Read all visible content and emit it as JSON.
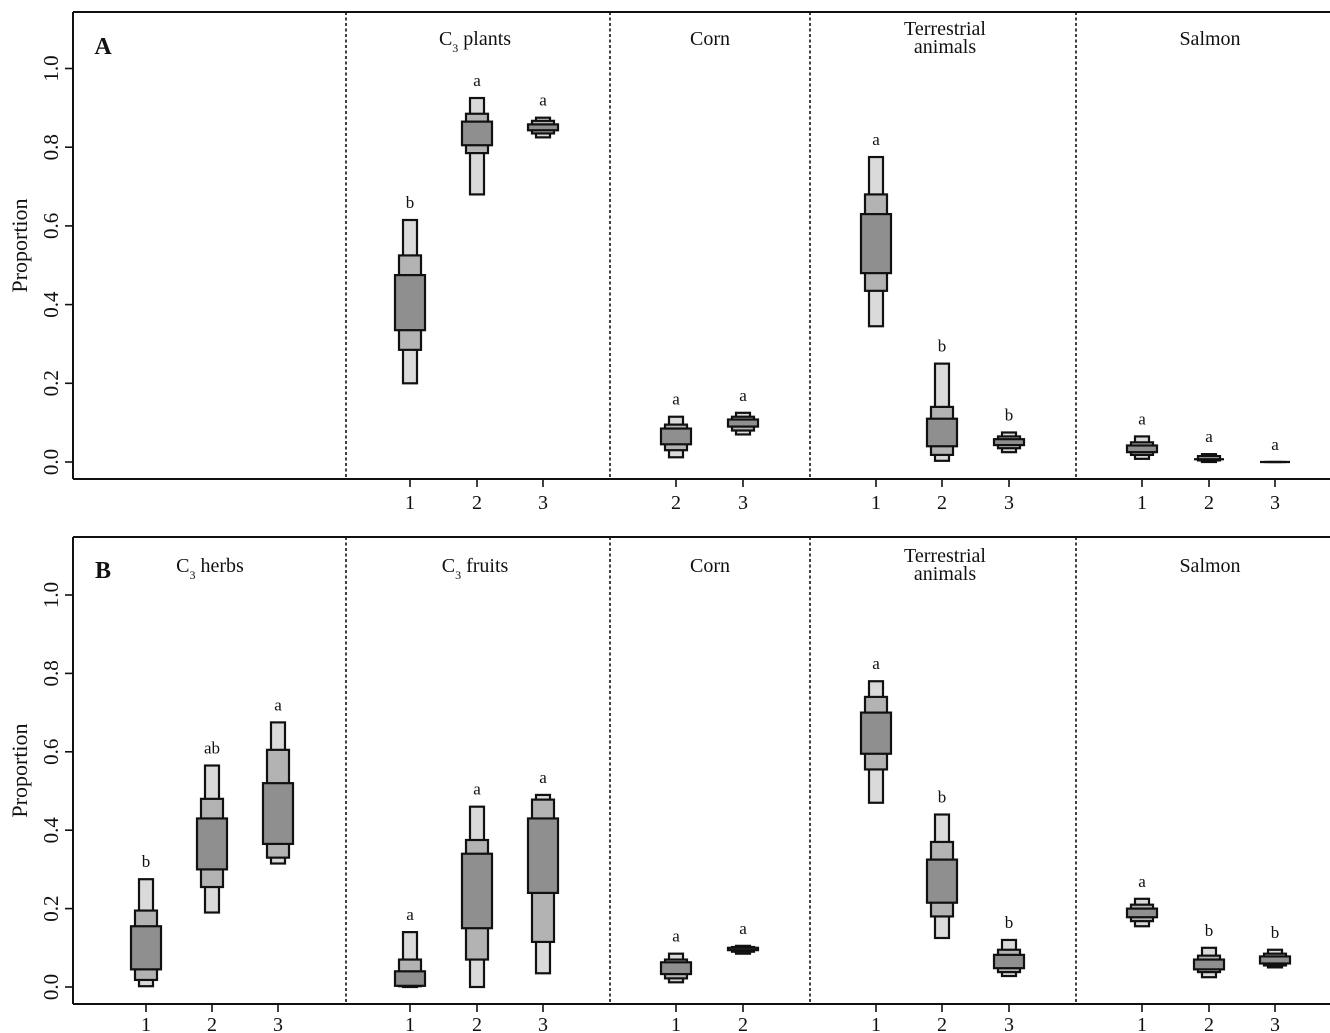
{
  "figure": {
    "ylabel": "Proportion",
    "colors": {
      "inner": "#8f8f8f",
      "middle": "#b3b3b3",
      "outer": "#dadada",
      "stroke": "#111111"
    }
  },
  "chart_data": [
    {
      "type": "box",
      "panel_label": "A",
      "ylabel": "Proportion",
      "ylim": [
        0.0,
        1.0
      ],
      "yticks": [
        "0.0",
        "0.2",
        "0.4",
        "0.6",
        "0.8",
        "1.0"
      ],
      "groups": [
        {
          "name": "",
          "boxes": []
        },
        {
          "name": "C3 plants",
          "title_main": "C",
          "title_sub": "3",
          "title_rest": " plants",
          "boxes": [
            {
              "x": "1",
              "letter": "b",
              "outer": [
                0.2,
                0.615
              ],
              "middle": [
                0.285,
                0.525
              ],
              "inner": [
                0.335,
                0.475
              ]
            },
            {
              "x": "2",
              "letter": "a",
              "outer": [
                0.68,
                0.925
              ],
              "middle": [
                0.785,
                0.885
              ],
              "inner": [
                0.805,
                0.865
              ]
            },
            {
              "x": "3",
              "letter": "a",
              "outer": [
                0.825,
                0.875
              ],
              "middle": [
                0.835,
                0.867
              ],
              "inner": [
                0.843,
                0.858
              ]
            }
          ]
        },
        {
          "name": "Corn",
          "title_main": "Corn",
          "boxes": [
            {
              "x": "2",
              "letter": "a",
              "outer": [
                0.012,
                0.115
              ],
              "middle": [
                0.03,
                0.095
              ],
              "inner": [
                0.045,
                0.085
              ]
            },
            {
              "x": "3",
              "letter": "a",
              "outer": [
                0.07,
                0.125
              ],
              "middle": [
                0.08,
                0.115
              ],
              "inner": [
                0.09,
                0.108
              ]
            }
          ]
        },
        {
          "name": "Terrestrial animals",
          "title_lines": [
            "Terrestrial",
            "animals"
          ],
          "boxes": [
            {
              "x": "1",
              "letter": "a",
              "outer": [
                0.345,
                0.775
              ],
              "middle": [
                0.435,
                0.68
              ],
              "inner": [
                0.48,
                0.63
              ]
            },
            {
              "x": "2",
              "letter": "b",
              "outer": [
                0.003,
                0.25
              ],
              "middle": [
                0.018,
                0.14
              ],
              "inner": [
                0.04,
                0.11
              ]
            },
            {
              "x": "3",
              "letter": "b",
              "outer": [
                0.025,
                0.075
              ],
              "middle": [
                0.035,
                0.065
              ],
              "inner": [
                0.043,
                0.058
              ]
            }
          ]
        },
        {
          "name": "Salmon",
          "title_main": "Salmon",
          "boxes": [
            {
              "x": "1",
              "letter": "a",
              "outer": [
                0.008,
                0.065
              ],
              "middle": [
                0.018,
                0.05
              ],
              "inner": [
                0.025,
                0.042
              ]
            },
            {
              "x": "2",
              "letter": "a",
              "outer": [
                0.0,
                0.02
              ],
              "middle": [
                0.004,
                0.015
              ],
              "inner": [
                0.007,
                0.012
              ]
            },
            {
              "x": "3",
              "letter": "a",
              "outer": [
                0.0,
                0.0
              ],
              "middle": [
                0.0,
                0.0
              ],
              "inner": [
                0.0,
                0.0
              ]
            }
          ]
        }
      ]
    },
    {
      "type": "box",
      "panel_label": "B",
      "ylabel": "Proportion",
      "ylim": [
        0.0,
        1.0
      ],
      "yticks": [
        "0.0",
        "0.2",
        "0.4",
        "0.6",
        "0.8",
        "1.0"
      ],
      "groups": [
        {
          "name": "C3 herbs",
          "title_main": "C",
          "title_sub": "3",
          "title_rest": " herbs",
          "boxes": [
            {
              "x": "1",
              "letter": "b",
              "outer": [
                0.002,
                0.275
              ],
              "middle": [
                0.018,
                0.195
              ],
              "inner": [
                0.045,
                0.155
              ]
            },
            {
              "x": "2",
              "letter": "ab",
              "outer": [
                0.19,
                0.565
              ],
              "middle": [
                0.255,
                0.48
              ],
              "inner": [
                0.3,
                0.43
              ]
            },
            {
              "x": "3",
              "letter": "a",
              "outer": [
                0.315,
                0.675
              ],
              "middle": [
                0.33,
                0.605
              ],
              "inner": [
                0.365,
                0.52
              ]
            }
          ]
        },
        {
          "name": "C3 fruits",
          "title_main": "C",
          "title_sub": "3",
          "title_rest": " fruits",
          "boxes": [
            {
              "x": "1",
              "letter": "a",
              "outer": [
                0.0,
                0.14
              ],
              "middle": [
                0.002,
                0.07
              ],
              "inner": [
                0.003,
                0.04
              ]
            },
            {
              "x": "2",
              "letter": "a",
              "outer": [
                0.0,
                0.46
              ],
              "middle": [
                0.07,
                0.375
              ],
              "inner": [
                0.15,
                0.34
              ]
            },
            {
              "x": "3",
              "letter": "a",
              "outer": [
                0.035,
                0.49
              ],
              "middle": [
                0.115,
                0.478
              ],
              "inner": [
                0.24,
                0.43
              ]
            }
          ]
        },
        {
          "name": "Corn",
          "title_main": "Corn",
          "boxes": [
            {
              "x": "1",
              "letter": "a",
              "outer": [
                0.012,
                0.085
              ],
              "middle": [
                0.022,
                0.07
              ],
              "inner": [
                0.033,
                0.063
              ]
            },
            {
              "x": "2",
              "letter": "a",
              "outer": [
                0.085,
                0.105
              ],
              "middle": [
                0.09,
                0.102
              ],
              "inner": [
                0.094,
                0.1
              ]
            }
          ]
        },
        {
          "name": "Terrestrial animals",
          "title_lines": [
            "Terrestrial",
            "animals"
          ],
          "boxes": [
            {
              "x": "1",
              "letter": "a",
              "outer": [
                0.47,
                0.78
              ],
              "middle": [
                0.555,
                0.74
              ],
              "inner": [
                0.595,
                0.7
              ]
            },
            {
              "x": "2",
              "letter": "b",
              "outer": [
                0.125,
                0.44
              ],
              "middle": [
                0.18,
                0.37
              ],
              "inner": [
                0.215,
                0.325
              ]
            },
            {
              "x": "3",
              "letter": "b",
              "outer": [
                0.028,
                0.12
              ],
              "middle": [
                0.038,
                0.095
              ],
              "inner": [
                0.048,
                0.082
              ]
            }
          ]
        },
        {
          "name": "Salmon",
          "title_main": "Salmon",
          "boxes": [
            {
              "x": "1",
              "letter": "a",
              "outer": [
                0.155,
                0.225
              ],
              "middle": [
                0.168,
                0.21
              ],
              "inner": [
                0.178,
                0.2
              ]
            },
            {
              "x": "2",
              "letter": "b",
              "outer": [
                0.025,
                0.1
              ],
              "middle": [
                0.038,
                0.08
              ],
              "inner": [
                0.045,
                0.07
              ]
            },
            {
              "x": "3",
              "letter": "b",
              "outer": [
                0.05,
                0.095
              ],
              "middle": [
                0.055,
                0.085
              ],
              "inner": [
                0.06,
                0.078
              ]
            }
          ]
        }
      ]
    }
  ]
}
